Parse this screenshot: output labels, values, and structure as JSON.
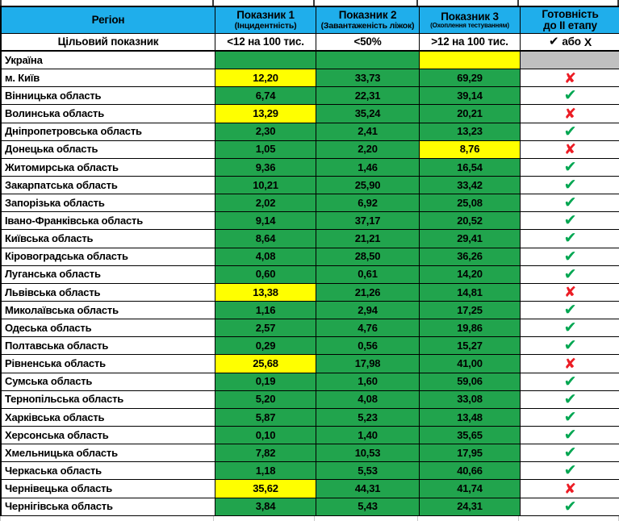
{
  "chart_data": {
    "type": "table",
    "header": {
      "region": "Регіон",
      "ind1_title": "Показник 1",
      "ind1_sub": "(Інцидентність)",
      "ind2_title": "Показник 2",
      "ind2_sub": "(Завантаженість ліжок)",
      "ind3_title": "Показник 3",
      "ind3_sub": "(Охоплення тестуванням)",
      "ready_line1": "Готовність",
      "ready_line2": "до II етапу"
    },
    "target_row": {
      "label": "Цільовий показник",
      "ind1": "<12 на 100 тис.",
      "ind2": "<50%",
      "ind3": ">12 на 100 тис.",
      "ready_check": "✔",
      "ready_or": "або",
      "ready_x": "Х"
    },
    "rows": [
      {
        "region": "Україна",
        "v1": "",
        "v2": "",
        "v3": "",
        "c1": "green",
        "c2": "green",
        "c3": "yellow",
        "ready": "none"
      },
      {
        "region": "м. Київ",
        "v1": "12,20",
        "v2": "33,73",
        "v3": "69,29",
        "c1": "yellow",
        "c2": "green",
        "c3": "green",
        "ready": "no"
      },
      {
        "region": "Вінницька область",
        "v1": "6,74",
        "v2": "22,31",
        "v3": "39,14",
        "c1": "green",
        "c2": "green",
        "c3": "green",
        "ready": "yes"
      },
      {
        "region": "Волинська область",
        "v1": "13,29",
        "v2": "35,24",
        "v3": "20,21",
        "c1": "yellow",
        "c2": "green",
        "c3": "green",
        "ready": "no"
      },
      {
        "region": "Дніпропетровська область",
        "v1": "2,30",
        "v2": "2,41",
        "v3": "13,23",
        "c1": "green",
        "c2": "green",
        "c3": "green",
        "ready": "yes"
      },
      {
        "region": "Донецька область",
        "v1": "1,05",
        "v2": "2,20",
        "v3": "8,76",
        "c1": "green",
        "c2": "green",
        "c3": "yellow",
        "ready": "no"
      },
      {
        "region": "Житомирська область",
        "v1": "9,36",
        "v2": "1,46",
        "v3": "16,54",
        "c1": "green",
        "c2": "green",
        "c3": "green",
        "ready": "yes"
      },
      {
        "region": "Закарпатська область",
        "v1": "10,21",
        "v2": "25,90",
        "v3": "33,42",
        "c1": "green",
        "c2": "green",
        "c3": "green",
        "ready": "yes"
      },
      {
        "region": "Запорізька область",
        "v1": "2,02",
        "v2": "6,92",
        "v3": "25,08",
        "c1": "green",
        "c2": "green",
        "c3": "green",
        "ready": "yes"
      },
      {
        "region": "Івано-Франківська область",
        "v1": "9,14",
        "v2": "37,17",
        "v3": "20,52",
        "c1": "green",
        "c2": "green",
        "c3": "green",
        "ready": "yes"
      },
      {
        "region": "Київська область",
        "v1": "8,64",
        "v2": "21,21",
        "v3": "29,41",
        "c1": "green",
        "c2": "green",
        "c3": "green",
        "ready": "yes"
      },
      {
        "region": "Кіровоградська область",
        "v1": "4,08",
        "v2": "28,50",
        "v3": "36,26",
        "c1": "green",
        "c2": "green",
        "c3": "green",
        "ready": "yes"
      },
      {
        "region": "Луганська область",
        "v1": "0,60",
        "v2": "0,61",
        "v3": "14,20",
        "c1": "green",
        "c2": "green",
        "c3": "green",
        "ready": "yes"
      },
      {
        "region": "Львівська область",
        "v1": "13,38",
        "v2": "21,26",
        "v3": "14,81",
        "c1": "yellow",
        "c2": "green",
        "c3": "green",
        "ready": "no"
      },
      {
        "region": "Миколаївська область",
        "v1": "1,16",
        "v2": "2,94",
        "v3": "17,25",
        "c1": "green",
        "c2": "green",
        "c3": "green",
        "ready": "yes"
      },
      {
        "region": "Одеська область",
        "v1": "2,57",
        "v2": "4,76",
        "v3": "19,86",
        "c1": "green",
        "c2": "green",
        "c3": "green",
        "ready": "yes"
      },
      {
        "region": "Полтавська область",
        "v1": "0,29",
        "v2": "0,56",
        "v3": "15,27",
        "c1": "green",
        "c2": "green",
        "c3": "green",
        "ready": "yes"
      },
      {
        "region": "Рівненська область",
        "v1": "25,68",
        "v2": "17,98",
        "v3": "41,00",
        "c1": "yellow",
        "c2": "green",
        "c3": "green",
        "ready": "no"
      },
      {
        "region": "Сумська область",
        "v1": "0,19",
        "v2": "1,60",
        "v3": "59,06",
        "c1": "green",
        "c2": "green",
        "c3": "green",
        "ready": "yes"
      },
      {
        "region": "Тернопільська область",
        "v1": "5,20",
        "v2": "4,08",
        "v3": "33,08",
        "c1": "green",
        "c2": "green",
        "c3": "green",
        "ready": "yes"
      },
      {
        "region": "Харківська область",
        "v1": "5,87",
        "v2": "5,23",
        "v3": "13,48",
        "c1": "green",
        "c2": "green",
        "c3": "green",
        "ready": "yes"
      },
      {
        "region": "Херсонська область",
        "v1": "0,10",
        "v2": "1,40",
        "v3": "35,65",
        "c1": "green",
        "c2": "green",
        "c3": "green",
        "ready": "yes"
      },
      {
        "region": "Хмельницька область",
        "v1": "7,82",
        "v2": "10,53",
        "v3": "17,95",
        "c1": "green",
        "c2": "green",
        "c3": "green",
        "ready": "yes"
      },
      {
        "region": "Черкаська область",
        "v1": "1,18",
        "v2": "5,53",
        "v3": "40,66",
        "c1": "green",
        "c2": "green",
        "c3": "green",
        "ready": "yes"
      },
      {
        "region": "Чернівецька область",
        "v1": "35,62",
        "v2": "44,31",
        "v3": "41,74",
        "c1": "yellow",
        "c2": "green",
        "c3": "green",
        "ready": "no"
      },
      {
        "region": "Чернігівська область",
        "v1": "3,84",
        "v2": "5,43",
        "v3": "24,31",
        "c1": "green",
        "c2": "green",
        "c3": "green",
        "ready": "yes"
      }
    ]
  },
  "colors": {
    "header_bg": "#1FAEEB",
    "green": "#21A44D",
    "yellow": "#FFFF00",
    "gray": "#C0C0C0",
    "check_green": "#00A651",
    "x_red": "#EC1C24"
  },
  "icons": {
    "check": "✔",
    "cross": "✘"
  }
}
